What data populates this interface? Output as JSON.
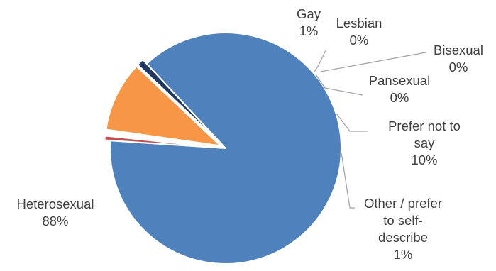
{
  "chart_data": {
    "type": "pie",
    "title": "",
    "slices": [
      {
        "label": "Heterosexual",
        "value": 88,
        "value_label": "88%",
        "color": "#4f81bd",
        "exploded": false
      },
      {
        "label": "Gay",
        "value": 0.6,
        "value_label": "1%",
        "color": "#c0504d",
        "exploded": true
      },
      {
        "label": "Lesbian",
        "value": 0.2,
        "value_label": "0%",
        "color": "#9bbb59",
        "exploded": true
      },
      {
        "label": "Bisexual",
        "value": 0.2,
        "value_label": "0%",
        "color": "#8064a2",
        "exploded": true
      },
      {
        "label": "Pansexual",
        "value": 0.2,
        "value_label": "0%",
        "color": "#4bacc6",
        "exploded": true
      },
      {
        "label": "Prefer not to say",
        "value": 9.8,
        "value_label": "10%",
        "color": "#f79646",
        "exploded": true
      },
      {
        "label": "Other / prefer to self-describe",
        "value": 1.0,
        "value_label": "1%",
        "color": "#1f3864",
        "exploded": true
      }
    ],
    "legend": "none",
    "data_labels": "category-and-percentage"
  }
}
